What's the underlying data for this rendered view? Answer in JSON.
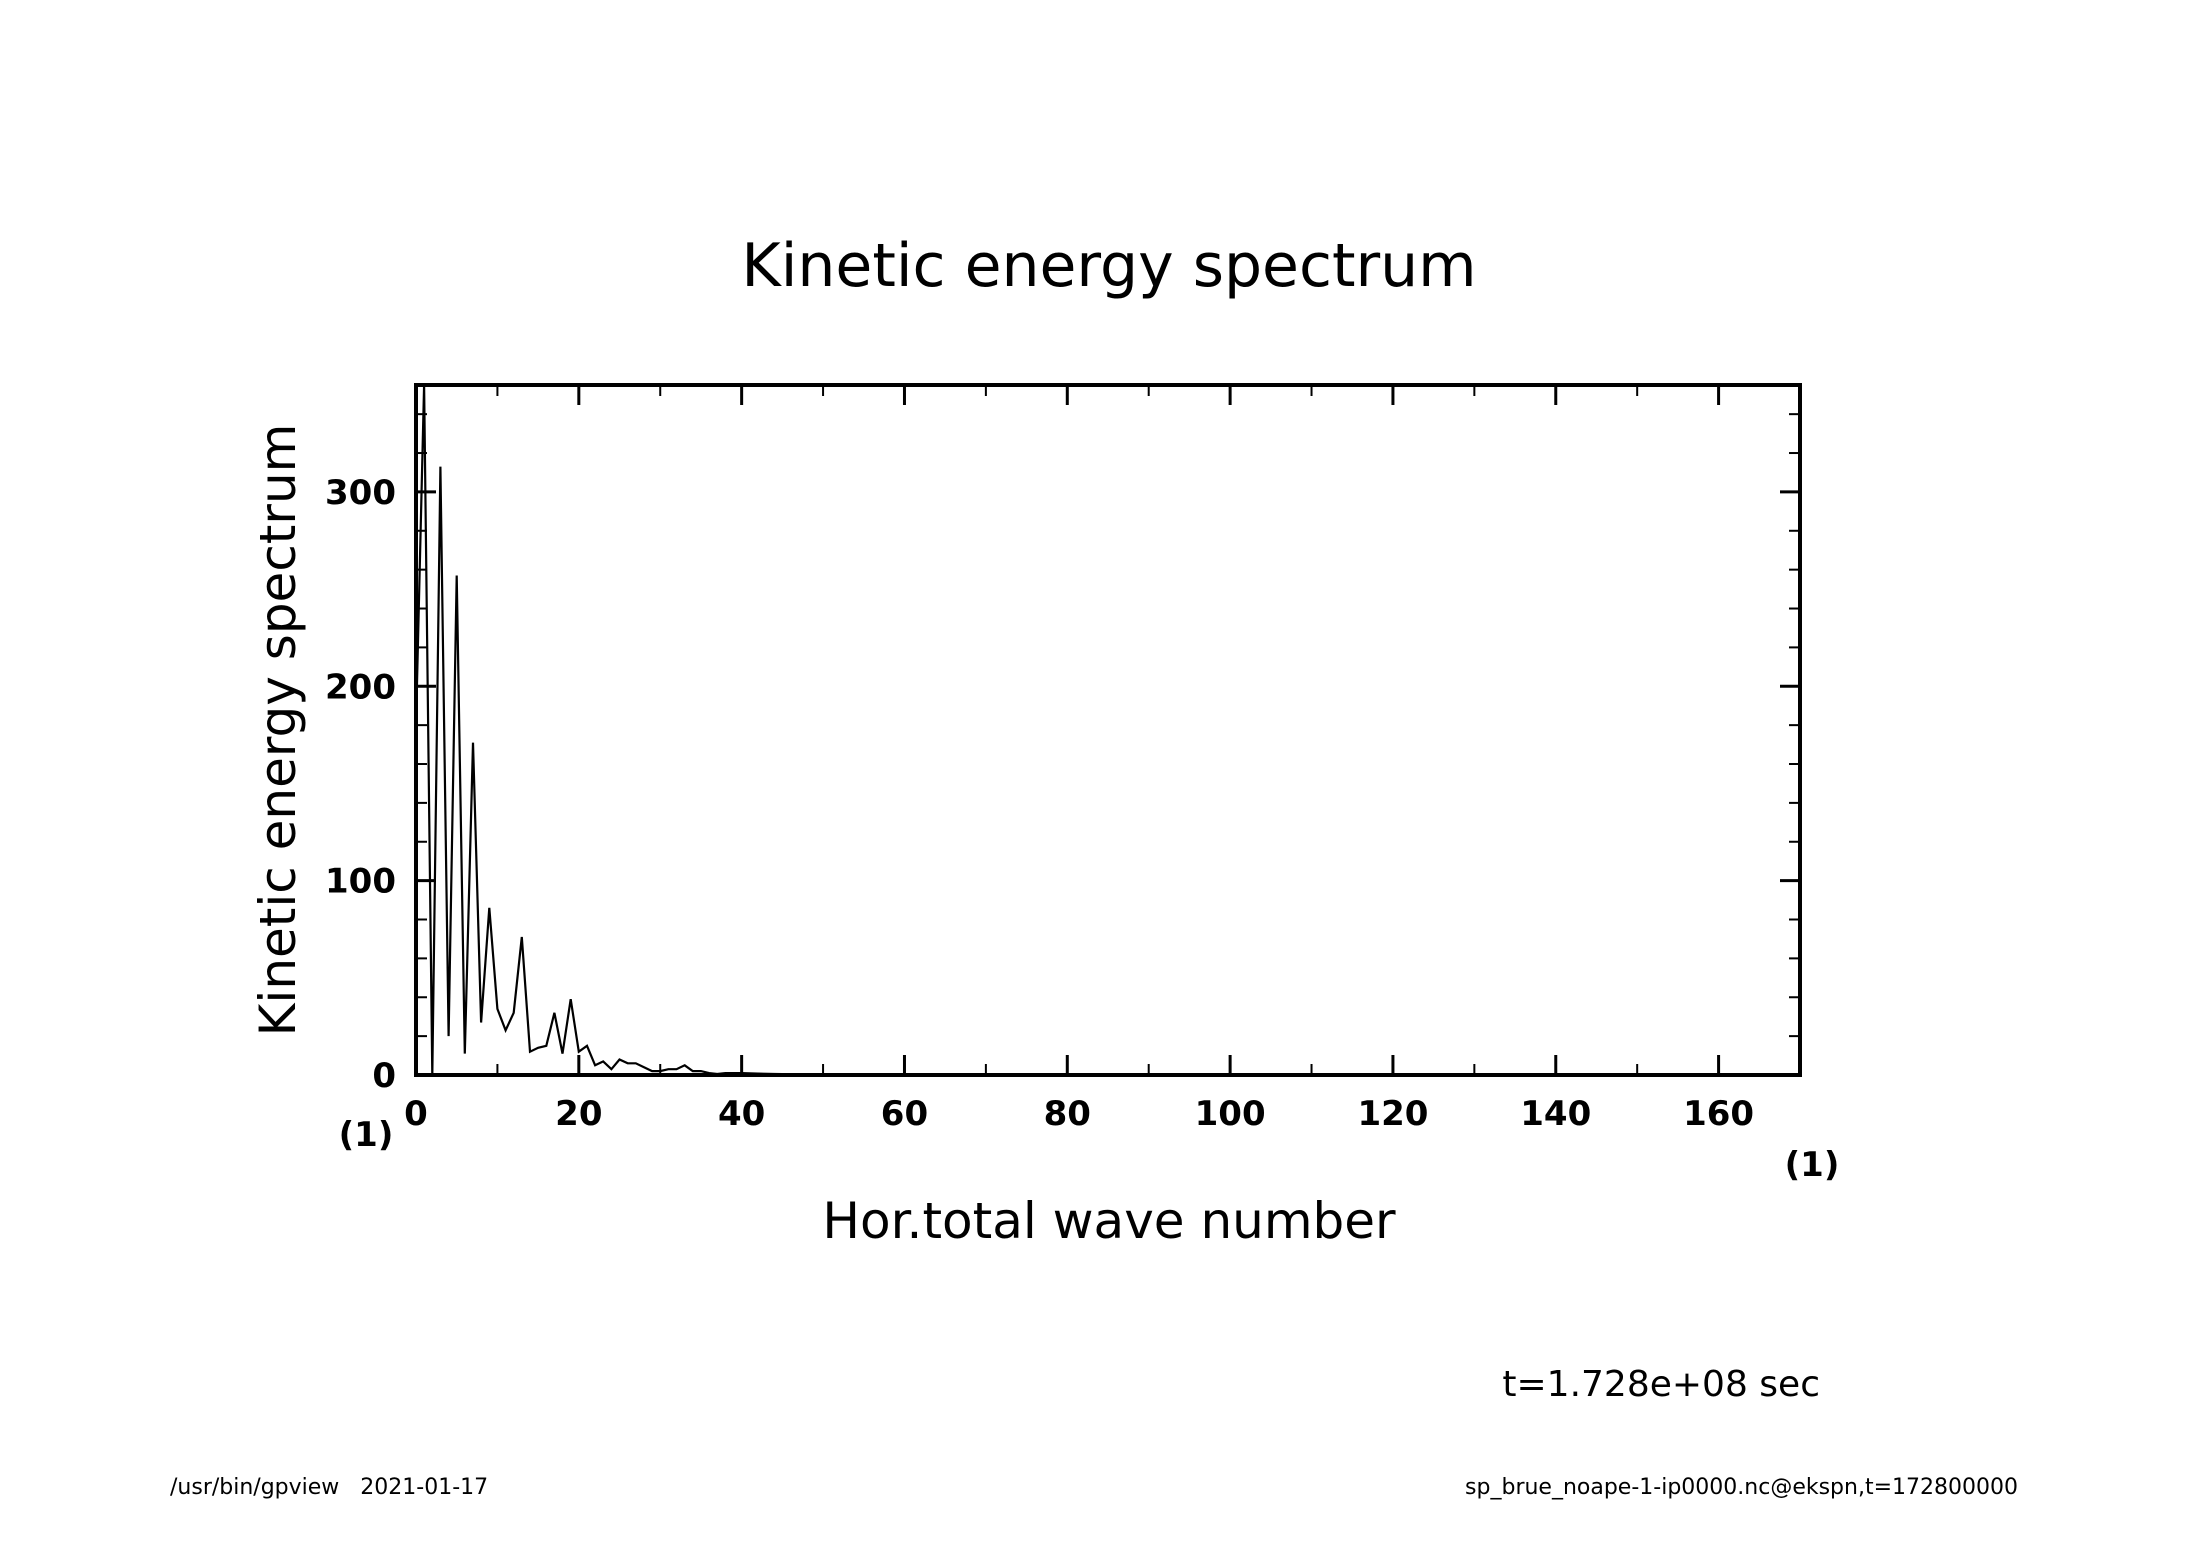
{
  "chart_data": {
    "type": "line",
    "title": "Kinetic energy spectrum",
    "xlabel": "Hor.total wave number",
    "ylabel": "Kinetic energy spectrum",
    "x_unit": "(1)",
    "y_unit": "(1)",
    "xlim": [
      0,
      170
    ],
    "ylim": [
      0,
      355
    ],
    "x_ticks": [
      0,
      20,
      40,
      60,
      80,
      100,
      120,
      140,
      160
    ],
    "y_ticks": [
      0,
      100,
      200,
      300
    ],
    "x_minor_step": 10,
    "y_minor_step": 20,
    "grid": false,
    "legend": "none",
    "series": [
      {
        "x": [
          0,
          1,
          2,
          3,
          4,
          5,
          6,
          7,
          8,
          9,
          10,
          11,
          12,
          13,
          14,
          15,
          16,
          17,
          18,
          19,
          20,
          21,
          22,
          23,
          24,
          25,
          26,
          27,
          28,
          29,
          30,
          31,
          32,
          33,
          34,
          35,
          36,
          37,
          38,
          39,
          40,
          42,
          44,
          46,
          48,
          50,
          55,
          60,
          70,
          80,
          100,
          120,
          140,
          160,
          170
        ],
        "values": [
          180,
          355,
          0,
          313,
          20,
          257,
          11,
          171,
          27,
          86,
          34,
          23,
          32,
          71,
          12,
          14,
          15,
          32,
          11,
          39,
          12,
          15,
          5,
          7,
          3,
          8,
          6,
          6,
          4,
          2,
          2,
          3,
          3,
          5,
          2,
          2,
          1,
          0.5,
          1,
          1,
          1,
          0.7,
          0.5,
          0.4,
          0.3,
          0.3,
          0.2,
          0.1,
          0.1,
          0.05,
          0.03,
          0.02,
          0.01,
          0.01,
          0.01
        ]
      }
    ]
  },
  "annotation": {
    "time_label": "t=1.728e+08 sec"
  },
  "footer": {
    "left": "/usr/bin/gpview   2021-01-17",
    "right": "sp_brue_noape-1-ip0000.nc@ekspn,t=172800000"
  }
}
